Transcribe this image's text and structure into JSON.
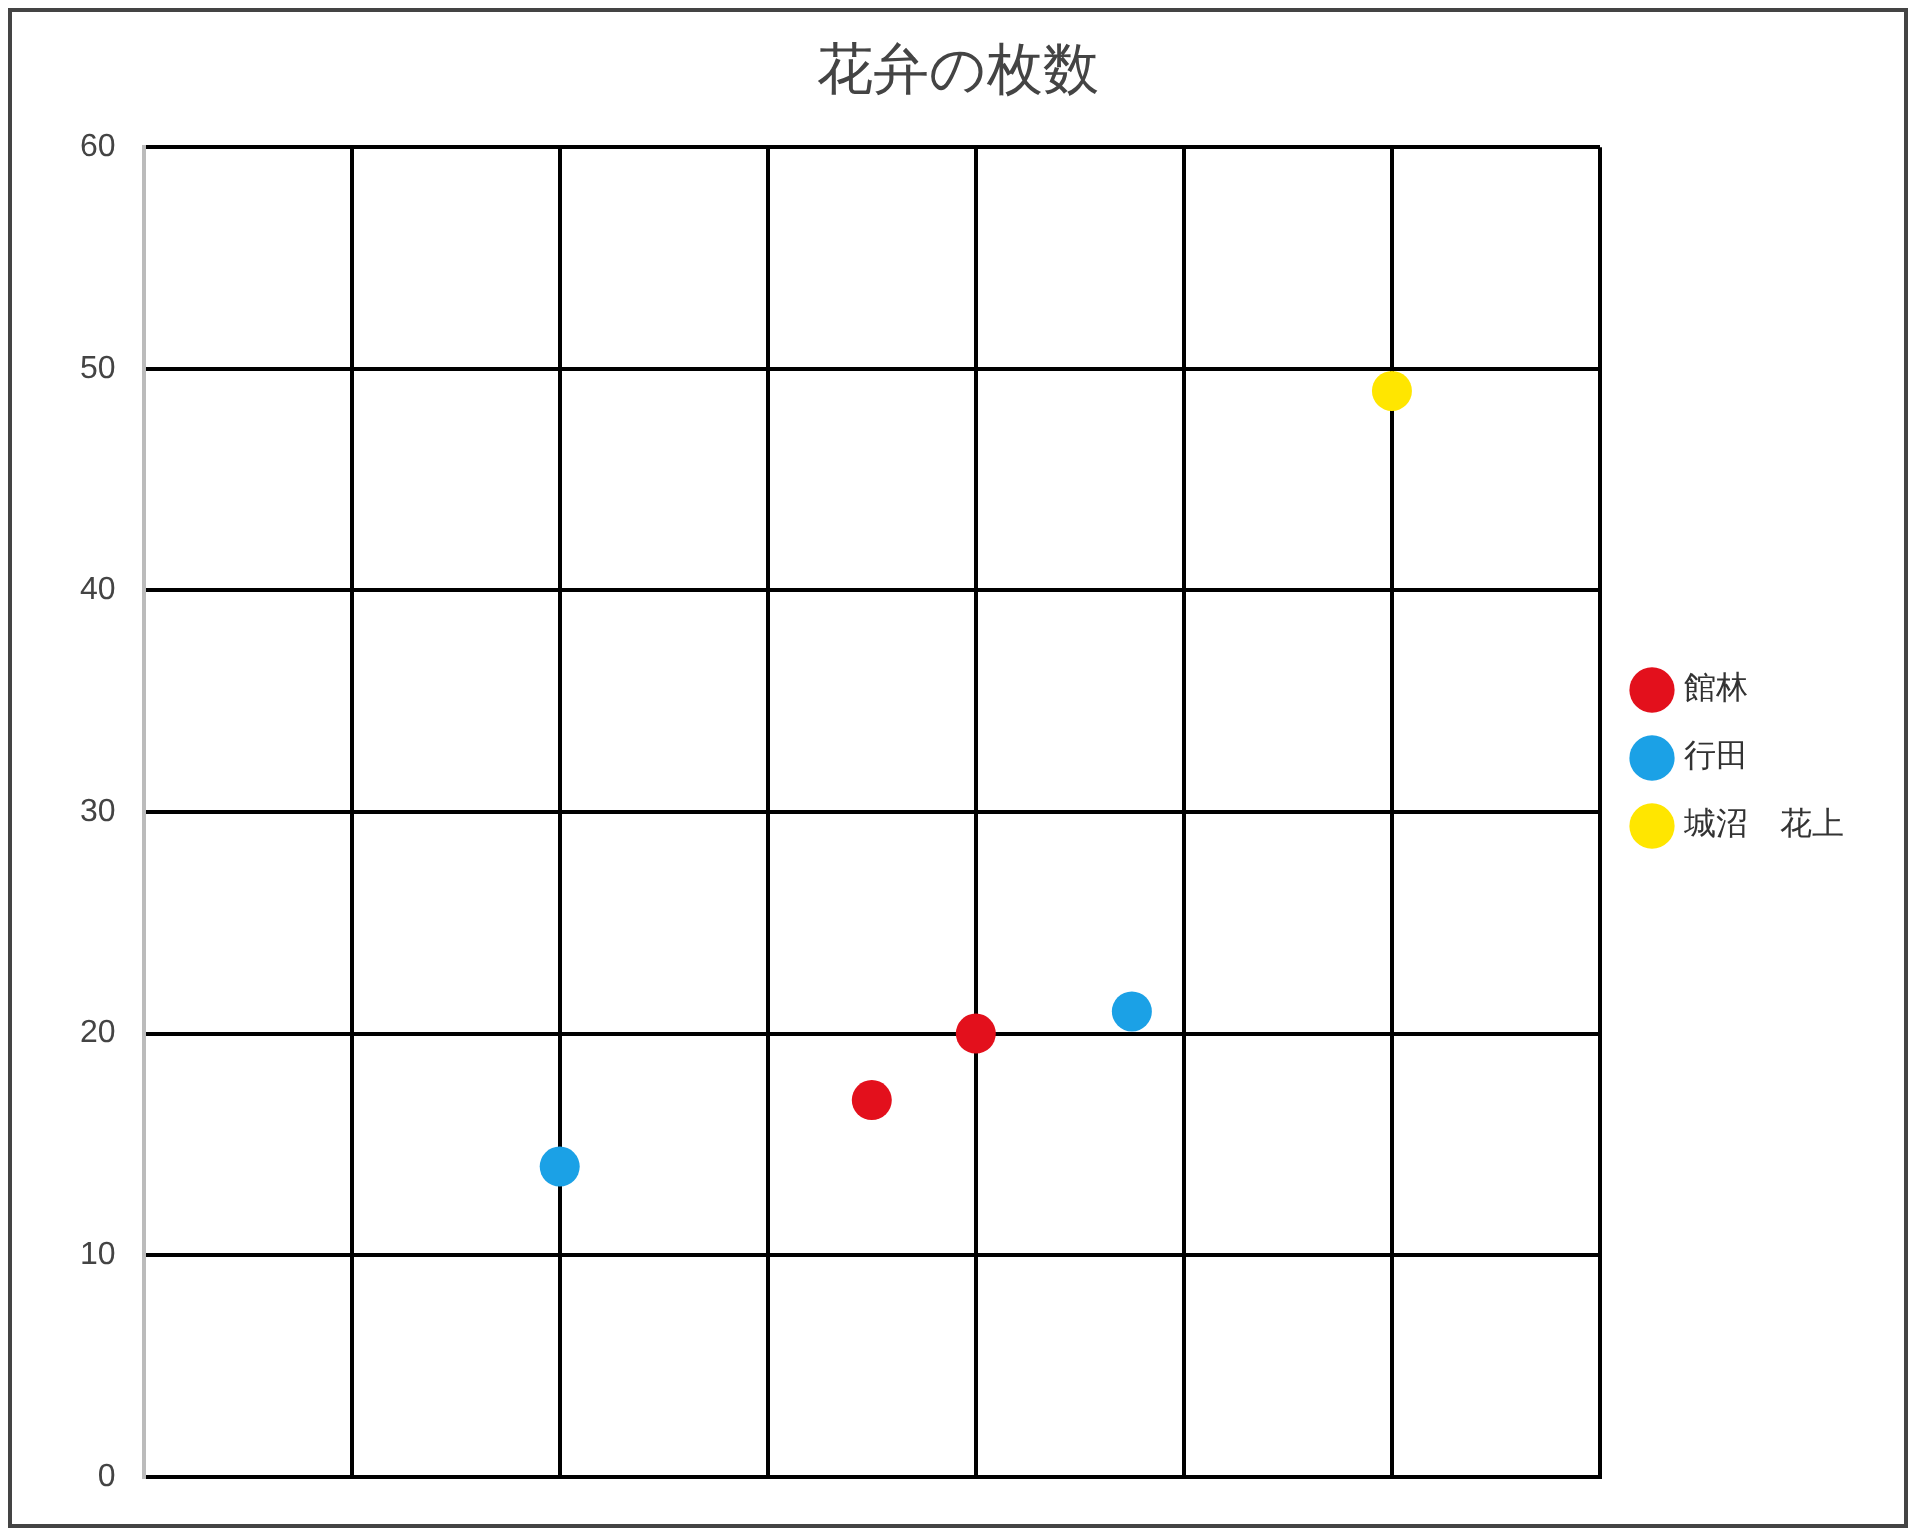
{
  "chart_data": {
    "type": "scatter",
    "title": "花弁の枚数",
    "categories": [
      null,
      null,
      null,
      null,
      null,
      null,
      null,
      null,
      null,
      null,
      null,
      null,
      null,
      null,
      null,
      null,
      null,
      null,
      null,
      null,
      null,
      null,
      null,
      null,
      null,
      null,
      null,
      null,
      null
    ],
    "series": [
      {
        "name": "館林",
        "color": "#e3101c",
        "values": [
          null,
          null,
          null,
          null,
          null,
          null,
          null,
          null,
          null,
          null,
          null,
          null,
          null,
          null,
          17,
          null,
          20,
          null,
          null,
          null,
          null,
          null,
          null,
          null,
          null,
          null,
          null,
          null,
          null
        ]
      },
      {
        "name": "行田",
        "color": "#1ba1e6",
        "values": [
          null,
          null,
          null,
          null,
          null,
          null,
          null,
          null,
          14,
          null,
          null,
          null,
          null,
          null,
          null,
          null,
          null,
          null,
          null,
          21,
          null,
          null,
          null,
          null,
          null,
          null,
          null,
          null,
          null
        ]
      },
      {
        "name": "城沼　花上",
        "color": "#ffe600",
        "values": [
          null,
          null,
          null,
          null,
          null,
          null,
          null,
          null,
          null,
          null,
          null,
          null,
          null,
          null,
          null,
          null,
          null,
          null,
          null,
          null,
          null,
          null,
          null,
          null,
          49,
          null,
          null,
          null,
          null
        ]
      }
    ],
    "ylim": [
      0,
      60
    ],
    "yticks": [
      0,
      10,
      20,
      30,
      40,
      50,
      60
    ],
    "tick_labels": "y",
    "grid": true,
    "legend": "right",
    "marker": "circle"
  }
}
